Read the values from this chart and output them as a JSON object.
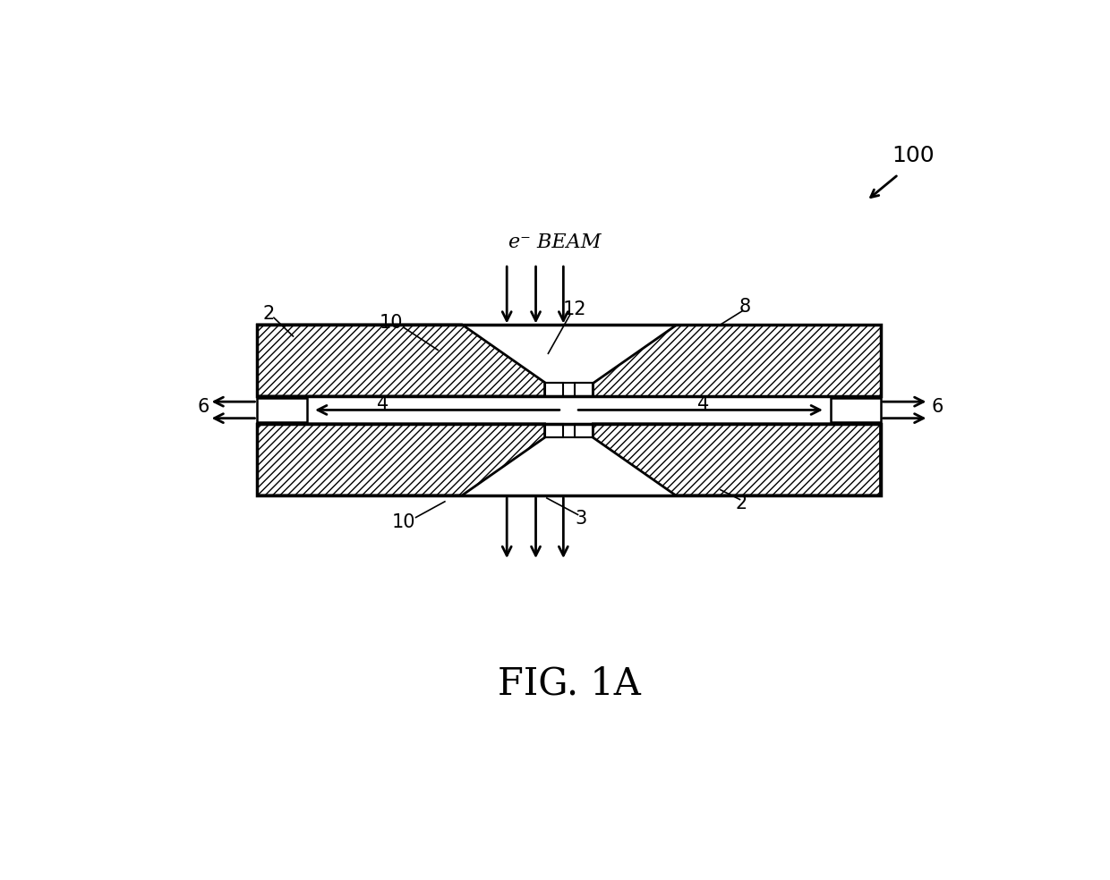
{
  "bg_color": "#ffffff",
  "line_color": "#000000",
  "fig_label": "FIG. 1A",
  "ref_num": "100",
  "ebeam_label": "e⁻ BEAM",
  "labels": {
    "2_left": "2",
    "2_right": "2",
    "3": "3",
    "4_left": "4",
    "4_right": "4",
    "6_left": "6",
    "6_right": "6",
    "8": "8",
    "10_top": "10",
    "10_bot": "10",
    "12": "12"
  },
  "canvas_xlim": [
    0,
    1240
  ],
  "canvas_ylim": [
    0,
    984
  ]
}
